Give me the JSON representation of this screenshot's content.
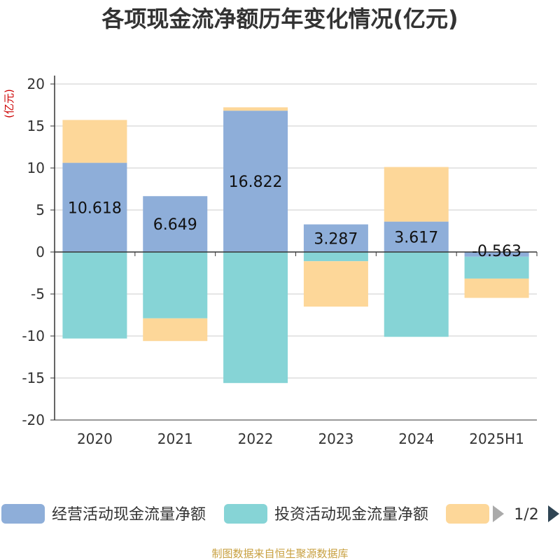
{
  "chart_data": {
    "type": "bar",
    "stacked": true,
    "title": "各项现金流净额历年变化情况(亿元)",
    "ylabel": "(亿元)",
    "categories": [
      "2020",
      "2021",
      "2022",
      "2023",
      "2024",
      "2025H1"
    ],
    "ylim": [
      -20,
      20
    ],
    "yticks": [
      20,
      15,
      10,
      5,
      0,
      -5,
      -10,
      -15,
      -20
    ],
    "grid": true,
    "series": [
      {
        "name": "经营活动现金流量净额",
        "color": "#8eaed9",
        "values": [
          10.618,
          6.649,
          16.822,
          3.287,
          3.617,
          -0.563
        ]
      },
      {
        "name": "投资活动现金流量净额",
        "color": "#86d4d6",
        "values": [
          -10.3,
          -7.9,
          -15.6,
          -1.1,
          -10.1,
          -2.6
        ]
      },
      {
        "name": "",
        "color": "#fdd799",
        "values": [
          5.1,
          -2.7,
          0.4,
          -5.4,
          6.5,
          -2.3
        ]
      }
    ],
    "data_labels": [
      "10.618",
      "6.649",
      "16.822",
      "3.287",
      "3.617",
      "-0.563"
    ],
    "legend": {
      "position": "bottom",
      "page_indicator": "1/2"
    },
    "source": "制图数据来自恒生聚源数据库"
  }
}
